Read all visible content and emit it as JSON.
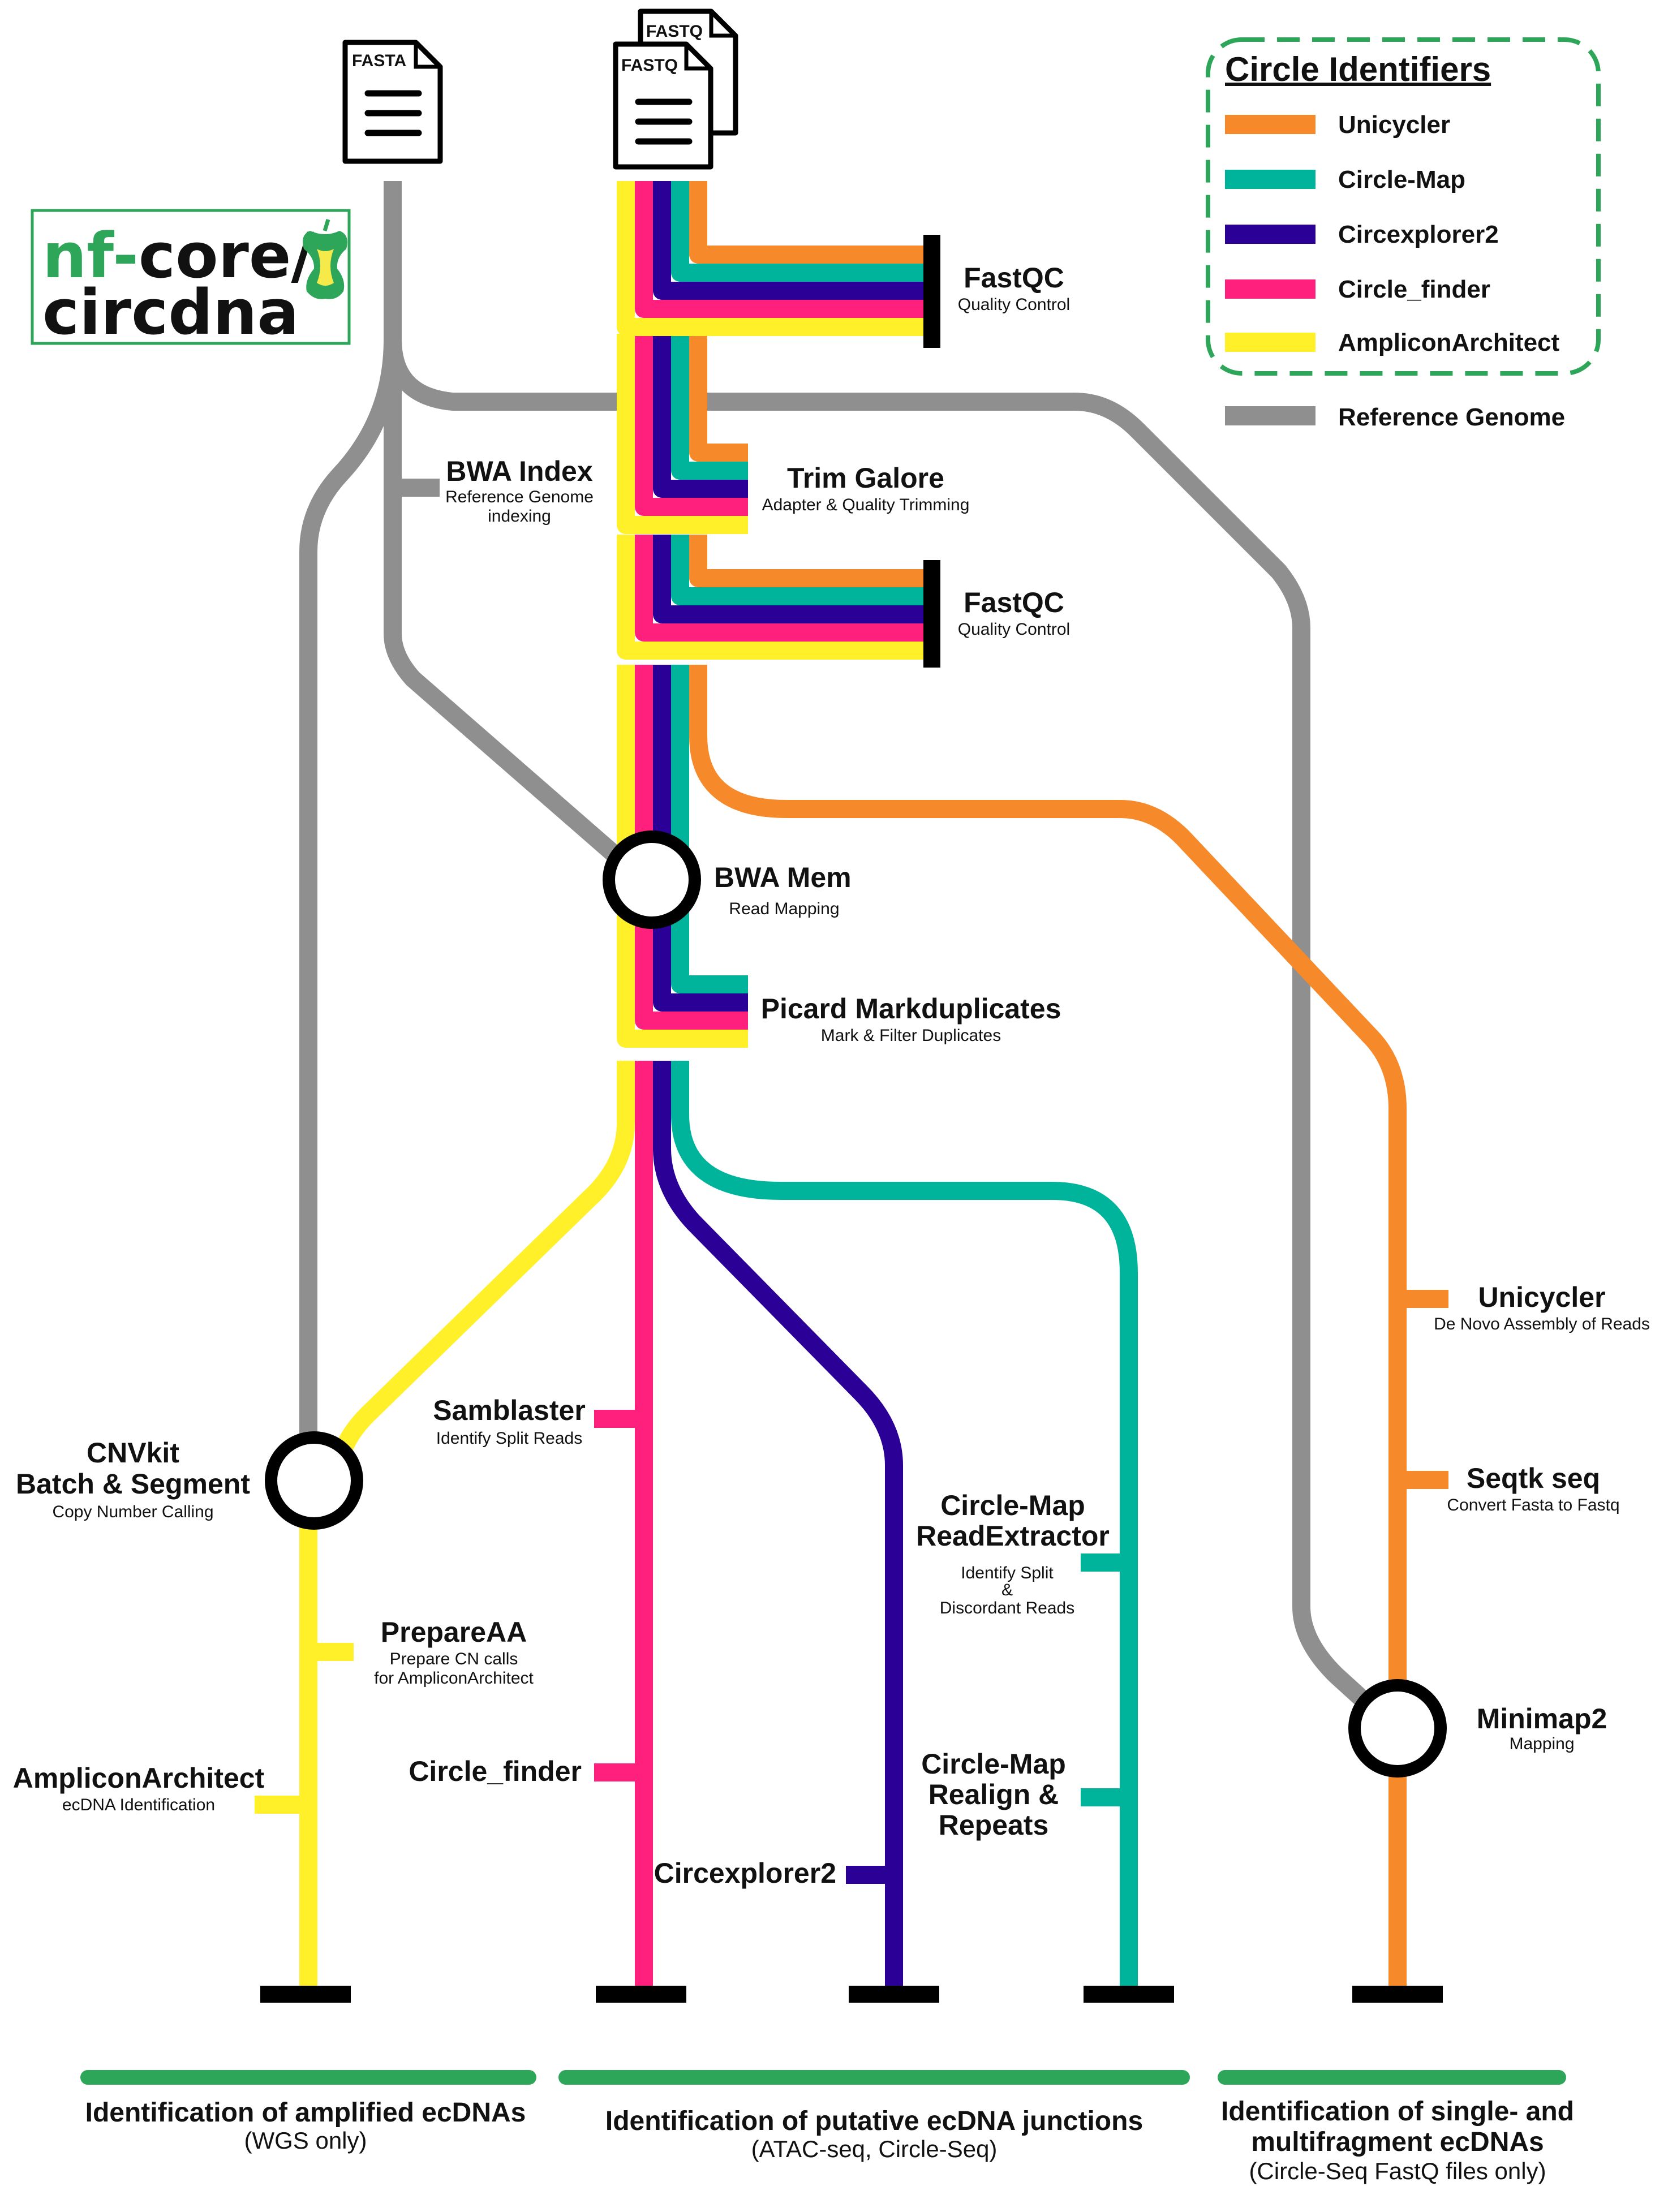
{
  "logo": {
    "prefix": "nf-",
    "line1_rest": "core/",
    "line2": "circdna"
  },
  "files": {
    "fasta": "FASTA",
    "fastq": "FASTQ"
  },
  "colors": {
    "unicycler": "#f6892a",
    "circlemap": "#00b49c",
    "circexplorer2": "#2a0097",
    "circle_finder": "#ff1f7c",
    "ampliconarchitect": "#fff02a",
    "reference": "#8f8f8f",
    "green": "#2ea659"
  },
  "legend": {
    "title": "Circle Identifiers",
    "items": [
      "Unicycler",
      "Circle-Map",
      "Circexplorer2",
      "Circle_finder",
      "AmpliconArchitect"
    ],
    "reference": "Reference Genome"
  },
  "steps": {
    "fastqc1": {
      "name": "FastQC",
      "desc": "Quality Control"
    },
    "trim": {
      "name": "Trim Galore",
      "desc": "Adapter & Quality Trimming"
    },
    "fastqc2": {
      "name": "FastQC",
      "desc": "Quality Control"
    },
    "bwa_index": {
      "name": "BWA Index",
      "desc1": "Reference Genome",
      "desc2": "indexing"
    },
    "bwa_mem": {
      "name": "BWA Mem",
      "desc": "Read Mapping"
    },
    "picard": {
      "name": "Picard Markduplicates",
      "desc": "Mark & Filter Duplicates"
    },
    "cnvkit": {
      "name1": "CNVkit",
      "name2": "Batch & Segment",
      "desc": "Copy Number Calling"
    },
    "prepareaa": {
      "name": "PrepareAA",
      "desc1": "Prepare CN calls",
      "desc2": "for AmpliconArchitect"
    },
    "ampliconarchitect": {
      "name": "AmpliconArchitect",
      "desc": "ecDNA Identification"
    },
    "samblaster": {
      "name": "Samblaster",
      "desc": "Identify Split Reads"
    },
    "circle_finder": {
      "name": "Circle_finder"
    },
    "circexplorer2": {
      "name": "Circexplorer2"
    },
    "cm_readextractor": {
      "name1": "Circle-Map",
      "name2": "ReadExtractor",
      "desc1": "Identify Split",
      "desc2": "&",
      "desc3": "Discordant Reads"
    },
    "cm_realign": {
      "name1": "Circle-Map",
      "name2": "Realign &",
      "name3": "Repeats"
    },
    "unicycler": {
      "name": "Unicycler",
      "desc": "De Novo Assembly of Reads"
    },
    "seqtk": {
      "name": "Seqtk seq",
      "desc": "Convert Fasta to Fastq"
    },
    "minimap2": {
      "name": "Minimap2",
      "desc": "Mapping"
    }
  },
  "sections": [
    {
      "title": "Identification of amplified ecDNAs",
      "subtitle": "(WGS only)"
    },
    {
      "title": "Identification of putative ecDNA junctions",
      "subtitle": "(ATAC-seq, Circle-Seq)"
    },
    {
      "title1": "Identification of single- and",
      "title2": "multifragment ecDNAs",
      "subtitle": "(Circle-Seq FastQ files only)"
    }
  ]
}
